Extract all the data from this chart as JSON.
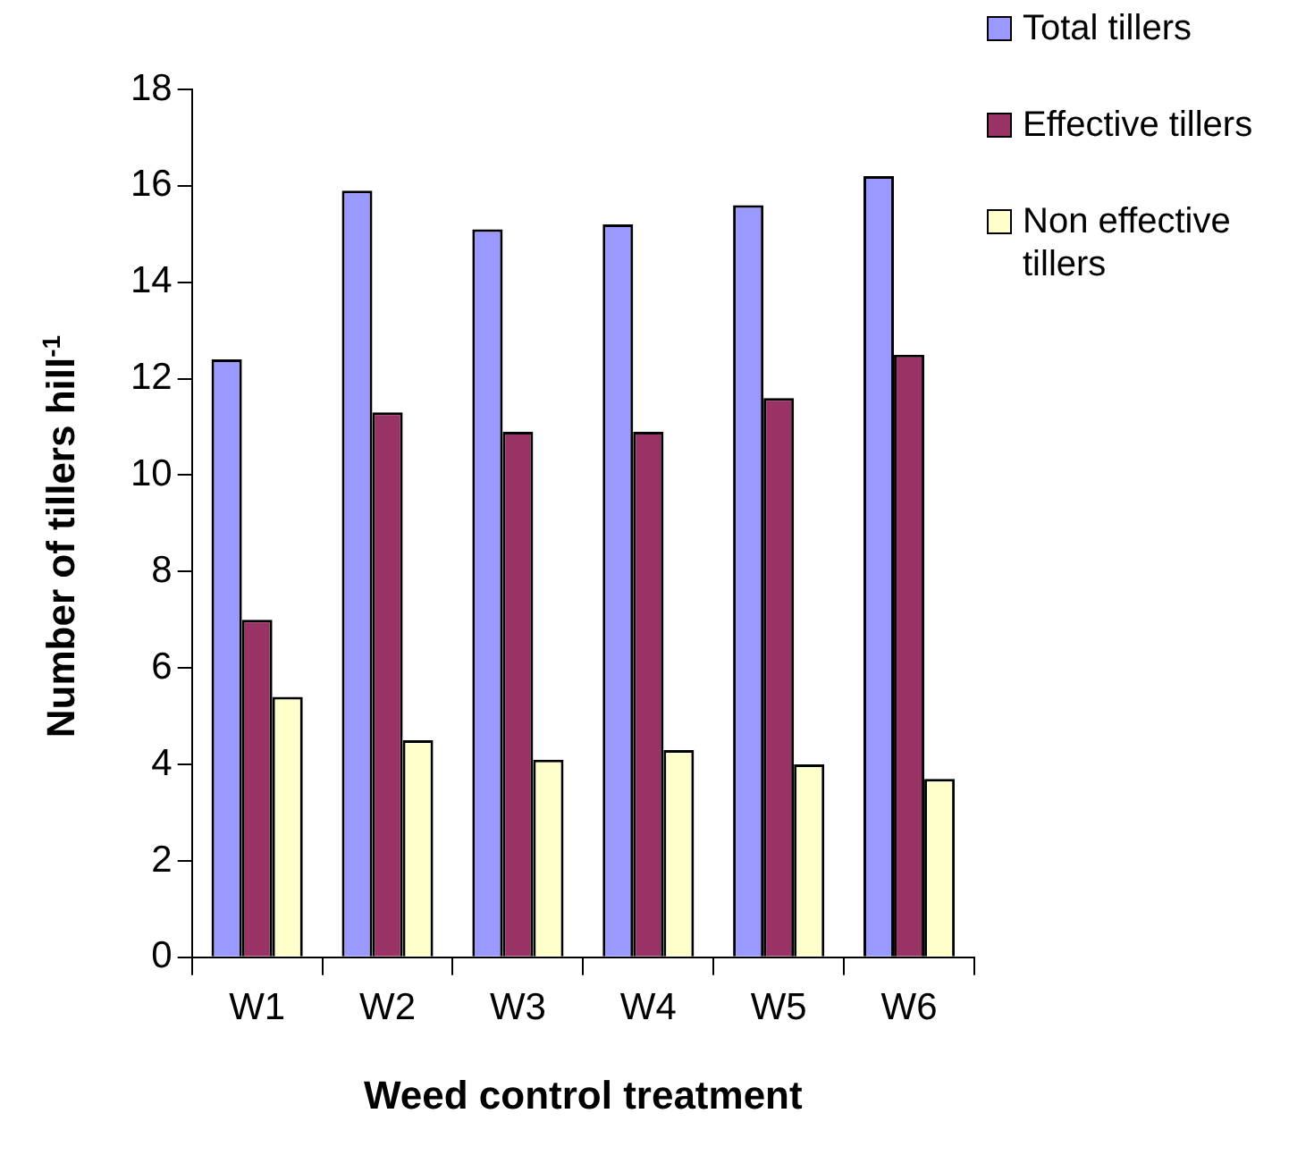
{
  "chart_data": {
    "type": "bar",
    "xlabel": "Weed control treatment",
    "ylabel": "Number of tillers hill$^{-1}$",
    "categories": [
      "W1",
      "W2",
      "W3",
      "W4",
      "W5",
      "W6"
    ],
    "series": [
      {
        "name": "Total tillers",
        "color": "#9999ff",
        "values": [
          12.4,
          15.9,
          15.1,
          15.2,
          15.6,
          16.2
        ]
      },
      {
        "name": "Effective tillers",
        "color": "#993366",
        "values": [
          7.0,
          11.3,
          10.9,
          10.9,
          11.6,
          12.5
        ]
      },
      {
        "name": "Non effective tillers",
        "color": "#ffffcc",
        "values": [
          5.4,
          4.5,
          4.1,
          4.3,
          4.0,
          3.7
        ]
      }
    ],
    "ylim": [
      0,
      18
    ],
    "yticks": [
      0,
      2,
      4,
      6,
      8,
      10,
      12,
      14,
      16,
      18
    ],
    "grid": false,
    "legend": "top right"
  }
}
